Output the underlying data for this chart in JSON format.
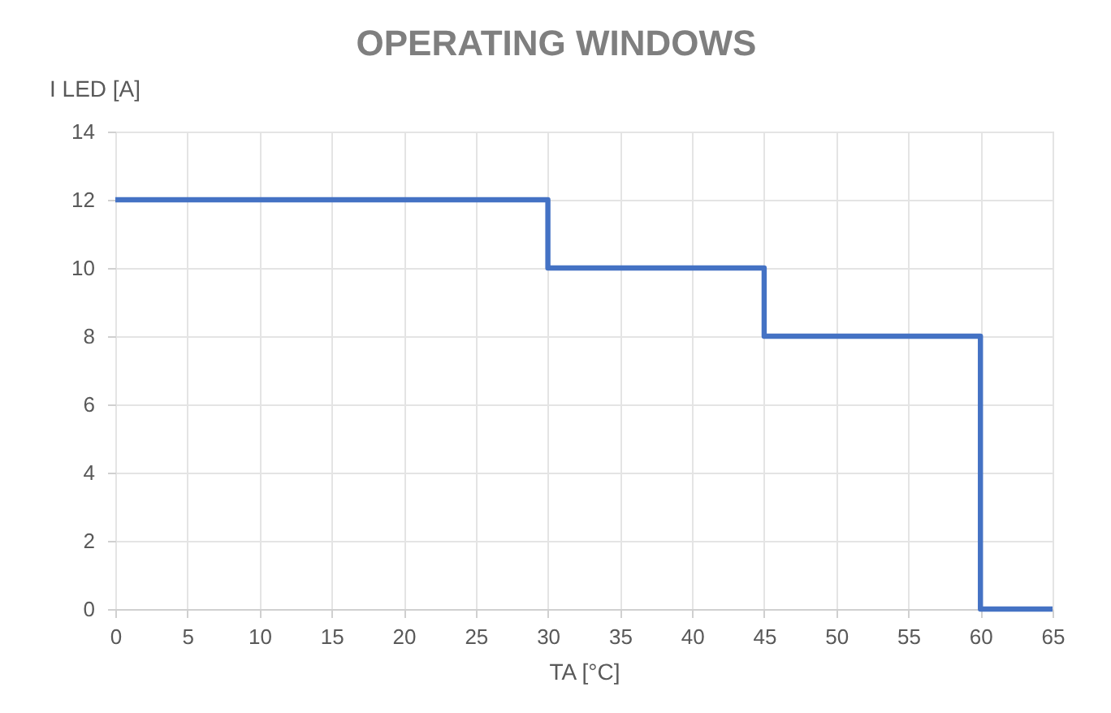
{
  "chart_data": {
    "type": "line",
    "title": "OPERATING WINDOWS",
    "xlabel": "TA [°C]",
    "ylabel": "I LED [A]",
    "x": [
      0,
      30,
      30,
      45,
      45,
      60,
      60,
      65
    ],
    "series": [
      {
        "color": "#4472c4",
        "values": [
          12,
          12,
          10,
          10,
          8,
          8,
          0,
          0
        ]
      }
    ],
    "xlim": [
      0,
      65
    ],
    "xticks": [
      0,
      5,
      10,
      15,
      20,
      25,
      30,
      35,
      40,
      45,
      50,
      55,
      60,
      65
    ],
    "ylim": [
      0,
      14
    ],
    "yticks": [
      0,
      2,
      4,
      6,
      8,
      10,
      12,
      14
    ],
    "grid": true,
    "line_style": "solid"
  }
}
